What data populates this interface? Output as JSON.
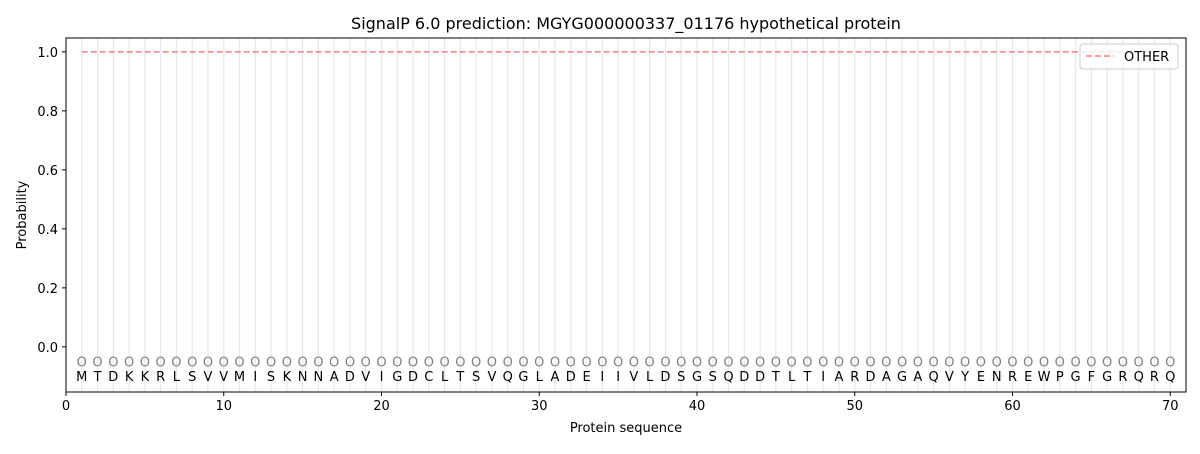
{
  "chart_data": {
    "type": "line",
    "title": "SignalP 6.0 prediction: MGYG000000337_01176 hypothetical protein",
    "xlabel": "Protein sequence",
    "ylabel": "Probability",
    "xlim": [
      0,
      71
    ],
    "ylim": [
      -0.153,
      1.047
    ],
    "xticks": [
      0,
      10,
      20,
      30,
      40,
      50,
      60,
      70
    ],
    "yticks": [
      0.0,
      0.2,
      0.4,
      0.6,
      0.8,
      1.0
    ],
    "ytick_labels": [
      "0.0",
      "0.2",
      "0.4",
      "0.6",
      "0.8",
      "1.0"
    ],
    "legend_position": "top-right",
    "sequence": "MTDKKRLSVVMISKNNADVIGDCLTSVQGLADEIIVLDSGSQDDTLTIARDAGAQVYENREWPGFGRQRQ",
    "position_label": "O",
    "series": [
      {
        "name": "OTHER",
        "color": "#f08080",
        "style": "dashed",
        "x_start": 1,
        "x_end": 70,
        "value": 1.0
      }
    ],
    "gridline_color": "#e8e8e8",
    "marker_color": "#808080"
  }
}
